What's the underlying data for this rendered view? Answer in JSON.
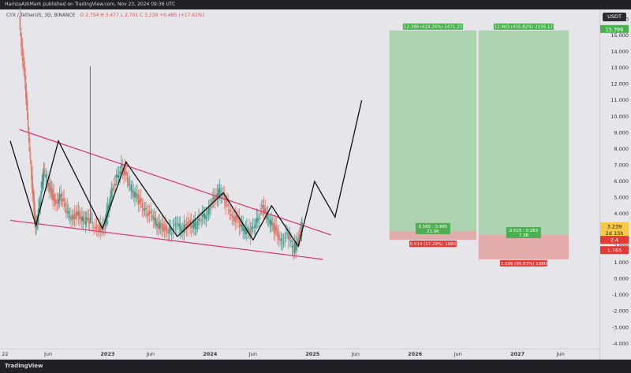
{
  "header": {
    "published_by": "HamzaAzkMark published on TradingView.com, Nov 23, 2024 09:36 UTC"
  },
  "legend": {
    "symbol": "CYX / TetherUS, 3D, BINANCE",
    "ohlc": "O 2.754  H 3.477  L 2.701  C 3.239  +0.485 (+17.61%)"
  },
  "footer": {
    "brand": "TradingView"
  },
  "currency_button": "USDT",
  "colors": {
    "candle_up": "#4a9a8c",
    "candle_down": "#e07a6a",
    "wedge_line": "#d9336e",
    "projection_line": "#111111",
    "profit_zone": "#a6cfa9",
    "loss_zone": "#e3a4a4",
    "label_green": "#4caf50",
    "label_red": "#e53935"
  },
  "chart_data": {
    "type": "candlestick",
    "y_scale": "linear",
    "ylim": [
      -4.3,
      16.6
    ],
    "y_ticks": [
      -4,
      -3,
      -2,
      -1,
      0,
      1,
      2,
      3,
      4,
      5,
      6,
      7,
      8,
      9,
      10,
      11,
      12,
      13,
      14,
      15,
      16
    ],
    "y_tick_labels": [
      "-4.000",
      "-3.000",
      "-2.000",
      "-1.000",
      "0.000",
      "1.000",
      "2.000",
      "3.000",
      "4.000",
      "5.000",
      "6.000",
      "7.000",
      "8.000",
      "9.000",
      "10.000",
      "11.000",
      "12.000",
      "13.000",
      "14.000",
      "15.000",
      "16.000"
    ],
    "x_tick_labels": [
      {
        "label": "22",
        "year": 2022.0
      },
      {
        "label": "Jun",
        "year": 2022.42
      },
      {
        "label": "2023",
        "year": 2023.0
      },
      {
        "label": "Jun",
        "year": 2023.42
      },
      {
        "label": "2024",
        "year": 2024.0
      },
      {
        "label": "Jun",
        "year": 2024.42
      },
      {
        "label": "2025",
        "year": 2025.0
      },
      {
        "label": "Jun",
        "year": 2025.42
      },
      {
        "label": "2026",
        "year": 2026.0
      },
      {
        "label": "Jun",
        "year": 2026.42
      },
      {
        "label": "2027",
        "year": 2027.0
      },
      {
        "label": "Jun",
        "year": 2027.42
      }
    ],
    "xlim": [
      2021.95,
      2027.8
    ],
    "price_path": [
      [
        2022.14,
        16.2
      ],
      [
        2022.2,
        12.0
      ],
      [
        2022.23,
        9.0
      ],
      [
        2022.27,
        5.5
      ],
      [
        2022.3,
        3.2
      ],
      [
        2022.34,
        4.5
      ],
      [
        2022.38,
        6.6
      ],
      [
        2022.44,
        5.6
      ],
      [
        2022.49,
        4.8
      ],
      [
        2022.55,
        5.0
      ],
      [
        2022.6,
        4.2
      ],
      [
        2022.66,
        3.8
      ],
      [
        2022.72,
        4.0
      ],
      [
        2022.78,
        3.5
      ],
      [
        2022.83,
        3.6
      ],
      [
        2022.9,
        3.2
      ],
      [
        2022.96,
        3.0
      ],
      [
        2023.02,
        4.6
      ],
      [
        2023.08,
        6.1
      ],
      [
        2023.14,
        7.0
      ],
      [
        2023.2,
        6.0
      ],
      [
        2023.26,
        5.2
      ],
      [
        2023.32,
        4.8
      ],
      [
        2023.38,
        4.2
      ],
      [
        2023.44,
        3.7
      ],
      [
        2023.5,
        3.3
      ],
      [
        2023.56,
        3.1
      ],
      [
        2023.62,
        3.0
      ],
      [
        2023.68,
        3.2
      ],
      [
        2023.74,
        3.1
      ],
      [
        2023.8,
        3.4
      ],
      [
        2023.86,
        3.3
      ],
      [
        2023.92,
        3.6
      ],
      [
        2023.98,
        4.2
      ],
      [
        2024.04,
        4.9
      ],
      [
        2024.1,
        5.4
      ],
      [
        2024.16,
        4.6
      ],
      [
        2024.22,
        4.0
      ],
      [
        2024.28,
        3.5
      ],
      [
        2024.34,
        3.0
      ],
      [
        2024.4,
        2.8
      ],
      [
        2024.46,
        3.8
      ],
      [
        2024.52,
        4.3
      ],
      [
        2024.58,
        3.6
      ],
      [
        2024.64,
        3.0
      ],
      [
        2024.7,
        2.4
      ],
      [
        2024.76,
        2.6
      ],
      [
        2024.82,
        1.8
      ],
      [
        2024.88,
        2.7
      ],
      [
        2024.9,
        3.24
      ]
    ],
    "projection_path": [
      [
        2022.05,
        8.5
      ],
      [
        2022.3,
        3.3
      ],
      [
        2022.52,
        8.5
      ],
      [
        2022.95,
        3.1
      ],
      [
        2023.18,
        7.2
      ],
      [
        2023.68,
        2.6
      ],
      [
        2024.13,
        5.3
      ],
      [
        2024.42,
        2.4
      ],
      [
        2024.6,
        4.5
      ],
      [
        2024.86,
        2.0
      ],
      [
        2025.02,
        6.0
      ],
      [
        2025.22,
        3.8
      ],
      [
        2025.48,
        11.0
      ]
    ],
    "wedge_lines": [
      {
        "from": [
          2022.14,
          9.2
        ],
        "to": [
          2025.18,
          2.7
        ]
      },
      {
        "from": [
          2022.05,
          3.6
        ],
        "to": [
          2025.1,
          1.2
        ]
      }
    ],
    "position_tools": [
      {
        "side": "long",
        "x_start": 2025.75,
        "x_end": 2026.6,
        "target_price": 15.3,
        "entry_price": 2.95,
        "stop_price": 2.4,
        "target_label": "12.398 (414.26%) 2471.23",
        "entry_label": "0.565 : 3.995",
        "entry_sublabel": "21.96",
        "stop_label": "0.514 (17.29%) 1980"
      },
      {
        "side": "long",
        "x_start": 2026.62,
        "x_end": 2027.5,
        "target_price": 15.3,
        "entry_price": 2.7,
        "stop_price": 1.2,
        "target_label": "12.403 (435.82%) 2156.12",
        "entry_label": "0.515 : 0.283",
        "entry_sublabel": "7.38",
        "stop_label": "1.599 (95.83%) 1980"
      }
    ],
    "price_tags": [
      {
        "label": "15.396",
        "price": 15.396,
        "color": "#4caf50"
      },
      {
        "label": "3.239",
        "price": 3.239,
        "color": "#f7c948",
        "text_color": "#111"
      },
      {
        "label": "2d 15h",
        "price": 2.82,
        "color": "#f7c948",
        "text_color": "#111"
      },
      {
        "label": "2.4",
        "price": 2.4,
        "color": "#e53935"
      },
      {
        "label": "1.765",
        "price": 1.765,
        "color": "#e53935"
      }
    ]
  }
}
